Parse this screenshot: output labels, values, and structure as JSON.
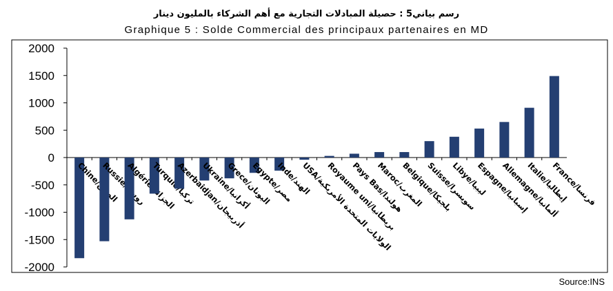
{
  "chart_data": {
    "type": "bar",
    "title": "رسم بياني5 : حصيلة المبادلات التجارية مع أهم الشركاء بالمليون دينار",
    "subtitle": "Graphique 5 : Solde Commercial des principaux partenaires en MD",
    "source": "Source:INS",
    "categories": [
      "Chine/الصين",
      "Russie/روسيا",
      "Algérie/الجزائر",
      "Turquie/تركيا",
      "Azerbaidjan/أذربيجان",
      "Ukraine/أكرانيا",
      "Grece/اليونان",
      "Egypte/مصر",
      "Inde/الهند",
      "USA/الولايات المتحدة الأمريكية",
      "Royaume uni/بريطانيا",
      "Pays Bas/هولندا",
      "Maroc/المغرب",
      "Belgique/بلجيكا",
      "Suisse/سويسرا",
      "Libye/ليبيا",
      "Espagne/إسبانيا",
      "Allemagne/ألمانيا",
      "Italie/إيطاليا",
      "France/فرنسا"
    ],
    "values": [
      -1840,
      -1530,
      -1130,
      -660,
      -570,
      -420,
      -380,
      -280,
      -240,
      -40,
      30,
      70,
      100,
      100,
      300,
      380,
      530,
      650,
      910,
      1490
    ],
    "ylim": [
      -2000,
      2000
    ],
    "yticks": [
      2000,
      1500,
      1000,
      500,
      0,
      -500,
      -1000,
      -1500,
      -2000
    ],
    "ytick_labels": [
      "2000",
      "1500",
      "1000",
      "500",
      "0",
      "-500",
      "-1000",
      "-1500",
      "-2000"
    ],
    "bar_color": "#243F72",
    "grid": false,
    "legend": "none"
  }
}
